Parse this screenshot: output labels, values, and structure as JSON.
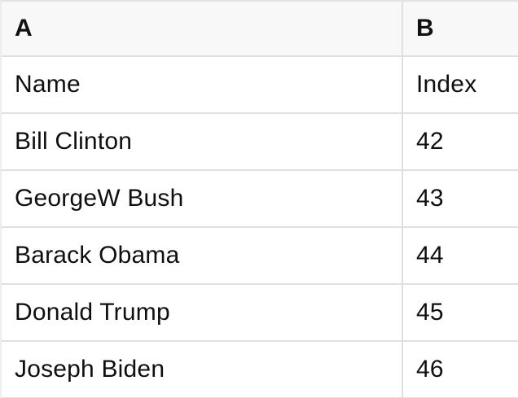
{
  "sheet": {
    "column_headers": [
      "A",
      "B"
    ],
    "rows": [
      [
        "Name",
        "Index"
      ],
      [
        "Bill Clinton",
        "42"
      ],
      [
        "GeorgeW Bush",
        "43"
      ],
      [
        "Barack Obama",
        "44"
      ],
      [
        "Donald Trump",
        "45"
      ],
      [
        "Joseph Biden",
        "46"
      ]
    ],
    "colors": {
      "header_background": "#f8f8f8",
      "grid_border": "#e0e0e0",
      "text": "#0f0f0f"
    }
  }
}
